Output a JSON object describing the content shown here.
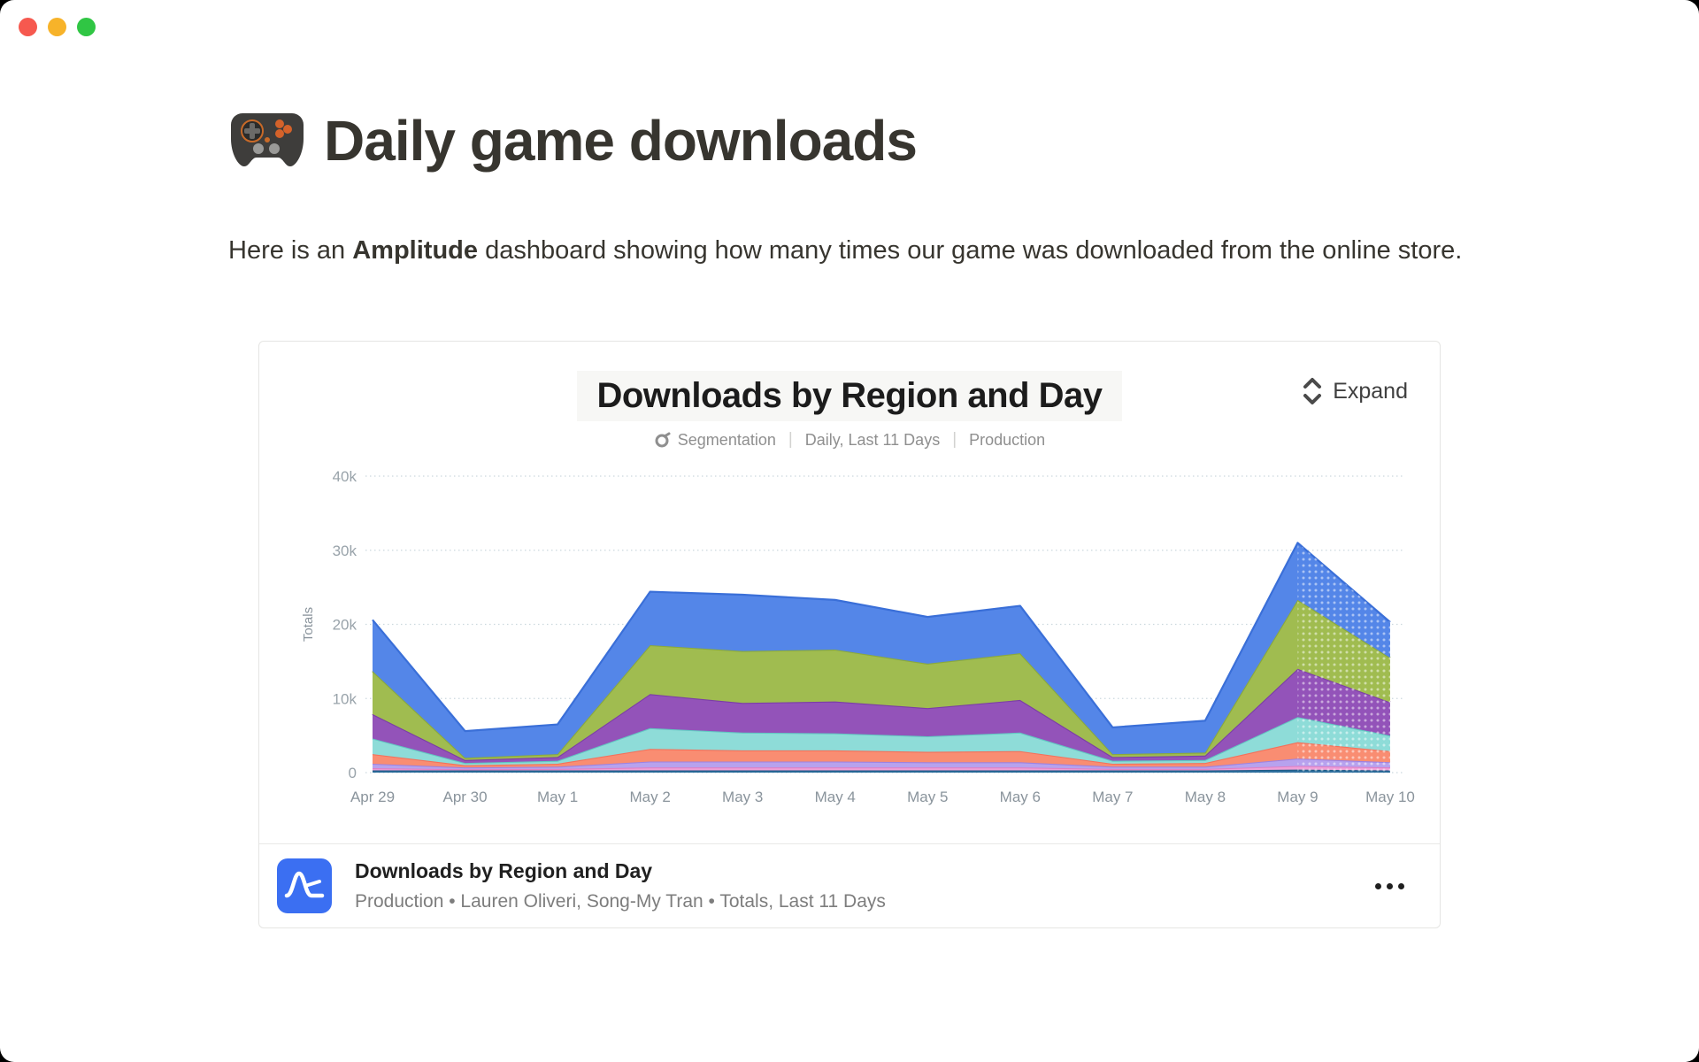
{
  "window": {
    "traffic_lights": {
      "close": "#f6594f",
      "minimize": "#f7b32a",
      "zoom": "#30c644"
    }
  },
  "page": {
    "title": "Daily game downloads",
    "title_emoji": "game-controller",
    "intro": {
      "prefix": "Here is an ",
      "bold": "Amplitude",
      "suffix": " dashboard showing how many times our game was downloaded from the online store."
    }
  },
  "card": {
    "header": {
      "title": "Downloads by Region and Day",
      "expand_label": "Expand",
      "meta": [
        "Segmentation",
        "Daily, Last 11 Days",
        "Production"
      ]
    },
    "footer": {
      "title": "Downloads by Region and Day",
      "subtitle": "Production • Lauren Oliveri, Song-My Tran • Totals, Last 11 Days",
      "menu_icon": "ellipsis"
    },
    "brand_color": "#3b6ff2"
  },
  "chart_data": {
    "type": "area",
    "stacked": true,
    "title": "Downloads by Region and Day",
    "xlabel": "",
    "ylabel": "Totals",
    "x": [
      "Apr 29",
      "Apr 30",
      "May 1",
      "May 2",
      "May 3",
      "May 4",
      "May 5",
      "May 6",
      "May 7",
      "May 8",
      "May 9",
      "May 10"
    ],
    "yticks": [
      "0",
      "10k",
      "20k",
      "30k",
      "40k"
    ],
    "ylim": [
      0,
      40000
    ],
    "grid": "dotted-horizontal",
    "legend": "none",
    "last_segment_dotted": true,
    "series": [
      {
        "name": "series-navy",
        "color": "#2e6f9e",
        "edge": "#1f5b86",
        "values": [
          300,
          300,
          300,
          300,
          300,
          300,
          300,
          300,
          300,
          300,
          400,
          300
        ]
      },
      {
        "name": "series-pink",
        "color": "#efa0d8",
        "edge": "#e07fc4",
        "values": [
          300,
          150,
          200,
          400,
          400,
          400,
          400,
          400,
          200,
          200,
          500,
          400
        ]
      },
      {
        "name": "series-lavender",
        "color": "#b7a2ee",
        "edge": "#9d82e0",
        "values": [
          600,
          250,
          300,
          800,
          800,
          800,
          700,
          700,
          300,
          300,
          1000,
          700
        ]
      },
      {
        "name": "series-salmon",
        "color": "#f98d72",
        "edge": "#f4705a",
        "values": [
          1300,
          300,
          400,
          1700,
          1500,
          1500,
          1400,
          1500,
          400,
          500,
          2200,
          1500
        ]
      },
      {
        "name": "series-teal",
        "color": "#8edcd8",
        "edge": "#62c8c2",
        "values": [
          2100,
          300,
          400,
          2800,
          2400,
          2300,
          2100,
          2500,
          400,
          400,
          3400,
          2100
        ]
      },
      {
        "name": "series-purple",
        "color": "#9353b9",
        "edge": "#7b3da6",
        "values": [
          3300,
          400,
          500,
          4600,
          4000,
          4300,
          3800,
          4400,
          500,
          600,
          6500,
          4500
        ]
      },
      {
        "name": "series-green",
        "color": "#a0bc50",
        "edge": "#8aa93c",
        "values": [
          5800,
          300,
          400,
          6600,
          7000,
          7000,
          6000,
          6300,
          400,
          400,
          9300,
          6000
        ]
      },
      {
        "name": "series-blue",
        "color": "#5486e8",
        "edge": "#3a6fd8",
        "values": [
          6900,
          3600,
          4000,
          7200,
          7600,
          6700,
          6300,
          6400,
          3600,
          4300,
          7700,
          4800
        ]
      }
    ]
  }
}
